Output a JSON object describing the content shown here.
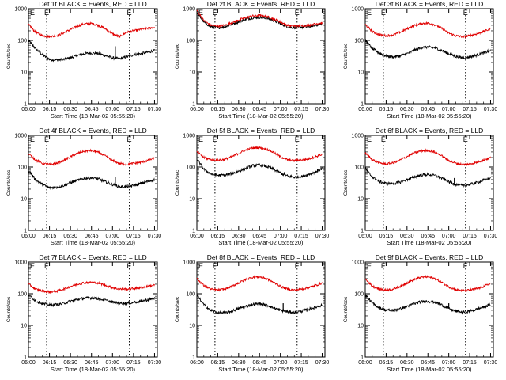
{
  "colors": {
    "events": "#000000",
    "lld": "#e00000",
    "background": "#ffffff"
  },
  "chart_data": [
    {
      "type": "line",
      "title": "Det 1f BLACK = Events, RED = LLD",
      "xlabel": "Start Time (18-Mar-02 05:55:20)",
      "ylabel": "Counts/sec",
      "yscale": "log",
      "ylim": [
        1,
        1000
      ],
      "yticks": [
        "1",
        "10",
        "100",
        "1000"
      ],
      "xticks": [
        "06:00",
        "06:15",
        "06:30",
        "06:45",
        "07:00",
        "07:15",
        "07:30"
      ],
      "xlim_minutes": [
        360,
        452
      ],
      "dashed_lines_minutes": [
        373,
        432
      ],
      "dashed_labels": [
        "E",
        "E"
      ],
      "x": [
        "06:00",
        "06:05",
        "06:10",
        "06:15",
        "06:20",
        "06:25",
        "06:30",
        "06:35",
        "06:40",
        "06:45",
        "06:50",
        "06:55",
        "07:00",
        "07:05",
        "07:10",
        "07:15",
        "07:20",
        "07:25",
        "07:30"
      ],
      "series": [
        {
          "values": [
            100,
            55,
            35,
            25,
            24,
            25,
            28,
            33,
            38,
            40,
            38,
            33,
            28,
            26,
            30,
            35,
            38,
            42,
            48
          ],
          "spikes": [
            {
              "x": "07:02",
              "value": 65
            }
          ]
        },
        {
          "values": [
            320,
            180,
            140,
            130,
            140,
            170,
            220,
            280,
            330,
            340,
            300,
            230,
            160,
            130,
            180,
            200,
            220,
            240,
            260
          ]
        }
      ]
    },
    {
      "type": "line",
      "title": "Det 2f BLACK = Events, RED = LLD",
      "xlabel": "Start Time (18-Mar-02 05:55:20)",
      "ylabel": "Counts/sec",
      "yscale": "log",
      "ylim": [
        1,
        1000
      ],
      "yticks": [
        "1",
        "10",
        "100",
        "1000"
      ],
      "xticks": [
        "06:00",
        "06:15",
        "06:30",
        "06:45",
        "07:00",
        "07:15",
        "07:30"
      ],
      "xlim_minutes": [
        360,
        452
      ],
      "dashed_lines_minutes": [
        373,
        432
      ],
      "dashed_labels": [
        "E",
        "E"
      ],
      "x": [
        "06:00",
        "06:05",
        "06:10",
        "06:15",
        "06:20",
        "06:25",
        "06:30",
        "06:35",
        "06:40",
        "06:45",
        "06:50",
        "06:55",
        "07:00",
        "07:05",
        "07:10",
        "07:15",
        "07:20",
        "07:25",
        "07:30"
      ],
      "series": [
        {
          "values": [
            750,
            380,
            270,
            250,
            270,
            320,
            390,
            460,
            520,
            540,
            510,
            430,
            340,
            270,
            250,
            260,
            270,
            300,
            330
          ],
          "spikes": []
        },
        {
          "values": [
            900,
            420,
            300,
            280,
            300,
            360,
            440,
            520,
            590,
            610,
            570,
            480,
            380,
            300,
            280,
            290,
            300,
            330,
            360
          ]
        }
      ]
    },
    {
      "type": "line",
      "title": "Det 3f BLACK = Events, RED = LLD",
      "xlabel": "Start Time (18-Mar-02 05:55:20)",
      "ylabel": "Counts/sec",
      "yscale": "log",
      "ylim": [
        1,
        1000
      ],
      "yticks": [
        "1",
        "10",
        "100",
        "1000"
      ],
      "xticks": [
        "06:00",
        "06:15",
        "06:30",
        "06:45",
        "07:00",
        "07:15",
        "07:30"
      ],
      "xlim_minutes": [
        360,
        452
      ],
      "dashed_lines_minutes": [
        373,
        432
      ],
      "dashed_labels": [
        "E",
        "E"
      ],
      "x": [
        "06:00",
        "06:05",
        "06:10",
        "06:15",
        "06:20",
        "06:25",
        "06:30",
        "06:35",
        "06:40",
        "06:45",
        "06:50",
        "06:55",
        "07:00",
        "07:05",
        "07:10",
        "07:15",
        "07:20",
        "07:25",
        "07:30"
      ],
      "series": [
        {
          "values": [
            100,
            55,
            40,
            32,
            30,
            32,
            38,
            48,
            58,
            62,
            58,
            48,
            38,
            31,
            28,
            30,
            34,
            40,
            48
          ],
          "spikes": []
        },
        {
          "values": [
            320,
            190,
            150,
            140,
            150,
            180,
            230,
            290,
            340,
            350,
            310,
            240,
            170,
            140,
            130,
            140,
            160,
            190,
            230
          ]
        }
      ]
    },
    {
      "type": "line",
      "title": "Det 4f BLACK = Events, RED = LLD",
      "xlabel": "Start Time (18-Mar-02 05:55:20)",
      "ylabel": "Counts/sec",
      "yscale": "log",
      "ylim": [
        1,
        1000
      ],
      "yticks": [
        "1",
        "10",
        "100",
        "1000"
      ],
      "xticks": [
        "06:00",
        "06:15",
        "06:30",
        "06:45",
        "07:00",
        "07:15",
        "07:30"
      ],
      "xlim_minutes": [
        360,
        452
      ],
      "dashed_lines_minutes": [
        373,
        432
      ],
      "dashed_labels": [
        "E",
        "E"
      ],
      "x": [
        "06:00",
        "06:05",
        "06:10",
        "06:15",
        "06:20",
        "06:25",
        "06:30",
        "06:35",
        "06:40",
        "06:45",
        "06:50",
        "06:55",
        "07:00",
        "07:05",
        "07:10",
        "07:15",
        "07:20",
        "07:25",
        "07:30"
      ],
      "series": [
        {
          "values": [
            80,
            40,
            28,
            22,
            23,
            26,
            32,
            38,
            44,
            46,
            42,
            34,
            28,
            24,
            24,
            26,
            30,
            35,
            40
          ],
          "spikes": [
            {
              "x": "07:02",
              "value": 48
            }
          ]
        },
        {
          "values": [
            260,
            170,
            130,
            120,
            130,
            160,
            210,
            270,
            320,
            330,
            290,
            220,
            160,
            130,
            120,
            130,
            140,
            160,
            190
          ]
        }
      ]
    },
    {
      "type": "line",
      "title": "Det 5f BLACK = Events, RED = LLD",
      "xlabel": "Start Time (18-Mar-02 05:55:20)",
      "ylabel": "Counts/sec",
      "yscale": "log",
      "ylim": [
        1,
        1000
      ],
      "yticks": [
        "1",
        "10",
        "100",
        "1000"
      ],
      "xticks": [
        "06:00",
        "06:15",
        "06:30",
        "06:45",
        "07:00",
        "07:15",
        "07:30"
      ],
      "xlim_minutes": [
        360,
        452
      ],
      "dashed_lines_minutes": [
        373,
        432
      ],
      "dashed_labels": [
        "E",
        "E"
      ],
      "x": [
        "06:00",
        "06:05",
        "06:10",
        "06:15",
        "06:20",
        "06:25",
        "06:30",
        "06:35",
        "06:40",
        "06:45",
        "06:50",
        "06:55",
        "07:00",
        "07:05",
        "07:10",
        "07:15",
        "07:20",
        "07:25",
        "07:30"
      ],
      "series": [
        {
          "values": [
            180,
            85,
            60,
            55,
            56,
            62,
            74,
            90,
            110,
            115,
            105,
            85,
            65,
            52,
            48,
            50,
            58,
            70,
            90
          ],
          "spikes": [
            {
              "x": "07:03",
              "value": 70
            }
          ]
        },
        {
          "values": [
            300,
            200,
            170,
            165,
            175,
            210,
            270,
            340,
            400,
            410,
            370,
            290,
            210,
            170,
            160,
            165,
            180,
            210,
            250
          ]
        }
      ]
    },
    {
      "type": "line",
      "title": "Det 6f BLACK = Events, RED = LLD",
      "xlabel": "Start Time (18-Mar-02 05:55:20)",
      "ylabel": "Counts/sec",
      "yscale": "log",
      "ylim": [
        1,
        1000
      ],
      "yticks": [
        "1",
        "10",
        "100",
        "1000"
      ],
      "xticks": [
        "06:00",
        "06:15",
        "06:30",
        "06:45",
        "07:00",
        "07:15",
        "07:30"
      ],
      "xlim_minutes": [
        360,
        452
      ],
      "dashed_lines_minutes": [
        373,
        432
      ],
      "dashed_labels": [
        "E",
        "E"
      ],
      "x": [
        "06:00",
        "06:05",
        "06:10",
        "06:15",
        "06:20",
        "06:25",
        "06:30",
        "06:35",
        "06:40",
        "06:45",
        "06:50",
        "06:55",
        "07:00",
        "07:05",
        "07:10",
        "07:15",
        "07:20",
        "07:25",
        "07:30"
      ],
      "series": [
        {
          "values": [
            90,
            48,
            35,
            30,
            30,
            33,
            40,
            48,
            56,
            58,
            54,
            44,
            34,
            28,
            26,
            28,
            32,
            38,
            45
          ],
          "spikes": [
            {
              "x": "07:04",
              "value": 45
            }
          ]
        },
        {
          "values": [
            280,
            170,
            135,
            125,
            135,
            165,
            215,
            275,
            325,
            335,
            295,
            225,
            160,
            130,
            120,
            125,
            140,
            165,
            200
          ]
        }
      ]
    },
    {
      "type": "line",
      "title": "Det 7f BLACK = Events, RED = LLD",
      "xlabel": "Start Time (18-Mar-02 05:55:20)",
      "ylabel": "Counts/sec",
      "yscale": "log",
      "ylim": [
        1,
        1000
      ],
      "yticks": [
        "1",
        "10",
        "100",
        "1000"
      ],
      "xticks": [
        "06:00",
        "06:15",
        "06:30",
        "06:45",
        "07:00",
        "07:15",
        "07:30"
      ],
      "xlim_minutes": [
        360,
        452
      ],
      "dashed_lines_minutes": [
        373,
        432
      ],
      "dashed_labels": [
        "E",
        "E"
      ],
      "x": [
        "06:00",
        "06:05",
        "06:10",
        "06:15",
        "06:20",
        "06:25",
        "06:30",
        "06:35",
        "06:40",
        "06:45",
        "06:50",
        "06:55",
        "07:00",
        "07:05",
        "07:10",
        "07:15",
        "07:20",
        "07:25",
        "07:30"
      ],
      "series": [
        {
          "values": [
            95,
            60,
            48,
            44,
            45,
            50,
            58,
            66,
            72,
            74,
            70,
            62,
            54,
            50,
            50,
            53,
            58,
            64,
            72
          ],
          "spikes": []
        },
        {
          "values": [
            200,
            140,
            120,
            115,
            120,
            140,
            170,
            200,
            225,
            230,
            215,
            185,
            155,
            140,
            140,
            145,
            155,
            170,
            190
          ]
        }
      ]
    },
    {
      "type": "line",
      "title": "Det 8f BLACK = Events, RED = LLD",
      "xlabel": "Start Time (18-Mar-02 05:55:20)",
      "ylabel": "Counts/sec",
      "yscale": "log",
      "ylim": [
        1,
        1000
      ],
      "yticks": [
        "1",
        "10",
        "100",
        "1000"
      ],
      "xticks": [
        "06:00",
        "06:15",
        "06:30",
        "06:45",
        "07:00",
        "07:15",
        "07:30"
      ],
      "xlim_minutes": [
        360,
        452
      ],
      "dashed_lines_minutes": [
        373,
        432
      ],
      "dashed_labels": [
        "E",
        "E"
      ],
      "x": [
        "06:00",
        "06:05",
        "06:10",
        "06:15",
        "06:20",
        "06:25",
        "06:30",
        "06:35",
        "06:40",
        "06:45",
        "06:50",
        "06:55",
        "07:00",
        "07:05",
        "07:10",
        "07:15",
        "07:20",
        "07:25",
        "07:30"
      ],
      "series": [
        {
          "values": [
            90,
            45,
            30,
            25,
            25,
            28,
            34,
            40,
            46,
            48,
            44,
            36,
            30,
            27,
            26,
            28,
            32,
            37,
            44
          ],
          "spikes": [
            {
              "x": "07:02",
              "value": 50
            }
          ]
        },
        {
          "values": [
            300,
            180,
            140,
            130,
            140,
            170,
            220,
            280,
            330,
            340,
            300,
            230,
            170,
            140,
            130,
            140,
            155,
            180,
            220
          ]
        }
      ]
    },
    {
      "type": "line",
      "title": "Det 9f BLACK = Events, RED = LLD",
      "xlabel": "Start Time (18-Mar-02 05:55:20)",
      "ylabel": "Counts/sec",
      "yscale": "log",
      "ylim": [
        1,
        1000
      ],
      "yticks": [
        "1",
        "10",
        "100",
        "1000"
      ],
      "xticks": [
        "06:00",
        "06:15",
        "06:30",
        "06:45",
        "07:00",
        "07:15",
        "07:30"
      ],
      "xlim_minutes": [
        360,
        452
      ],
      "dashed_lines_minutes": [
        373,
        432
      ],
      "dashed_labels": [
        "E",
        "E"
      ],
      "x": [
        "06:00",
        "06:05",
        "06:10",
        "06:15",
        "06:20",
        "06:25",
        "06:30",
        "06:35",
        "06:40",
        "06:45",
        "06:50",
        "06:55",
        "07:00",
        "07:05",
        "07:10",
        "07:15",
        "07:20",
        "07:25",
        "07:30"
      ],
      "series": [
        {
          "values": [
            95,
            50,
            36,
            30,
            30,
            33,
            40,
            48,
            56,
            58,
            54,
            44,
            34,
            28,
            26,
            28,
            32,
            38,
            46
          ],
          "spikes": [
            {
              "x": "07:00",
              "value": 50
            }
          ]
        },
        {
          "values": [
            290,
            175,
            140,
            130,
            140,
            170,
            220,
            280,
            330,
            340,
            300,
            230,
            165,
            135,
            125,
            130,
            145,
            170,
            210
          ]
        }
      ]
    }
  ]
}
